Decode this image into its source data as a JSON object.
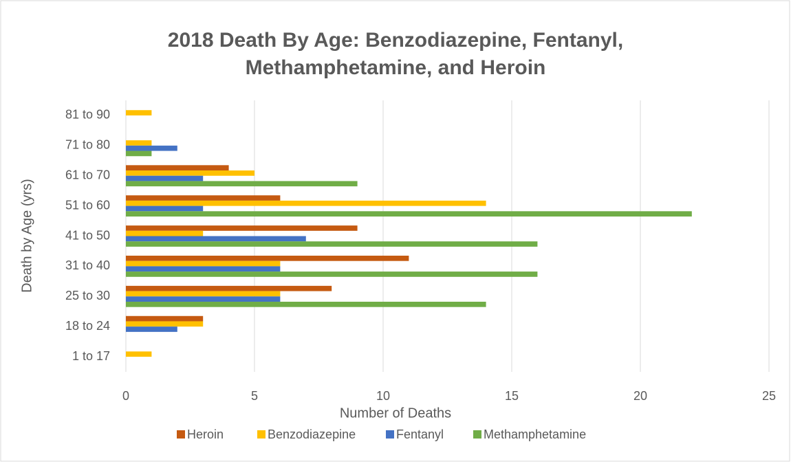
{
  "chart_data": {
    "type": "barh",
    "title": [
      "2018  Death By Age: Benzodiazepine, Fentanyl,",
      "Methamphetamine, and Heroin"
    ],
    "x_label": "Number of Deaths",
    "y_label": "Death by Age (yrs)",
    "categories": [
      "1 to 17",
      "18 to 24",
      "25 to 30",
      "31 to 40",
      "41 to 50",
      "51 to 60",
      "61 to 70",
      "71 to 80",
      "81 to 90"
    ],
    "series": [
      {
        "name": "Heroin",
        "color": "#c55a11",
        "values": [
          0,
          3,
          8,
          11,
          9,
          6,
          4,
          0,
          0
        ]
      },
      {
        "name": "Benzodiazepine",
        "color": "#ffc000",
        "values": [
          1,
          3,
          6,
          6,
          3,
          14,
          5,
          1,
          1
        ]
      },
      {
        "name": "Fentanyl",
        "color": "#4472c4",
        "values": [
          0,
          2,
          6,
          6,
          7,
          3,
          3,
          2,
          0
        ]
      },
      {
        "name": "Methamphetamine",
        "color": "#70ad47",
        "values": [
          0,
          0,
          14,
          16,
          16,
          22,
          9,
          1,
          0
        ]
      }
    ],
    "xlim": [
      0,
      25
    ],
    "xticks": [
      0,
      5,
      10,
      15,
      20,
      25
    ],
    "grid": true,
    "legend": "bottom"
  }
}
